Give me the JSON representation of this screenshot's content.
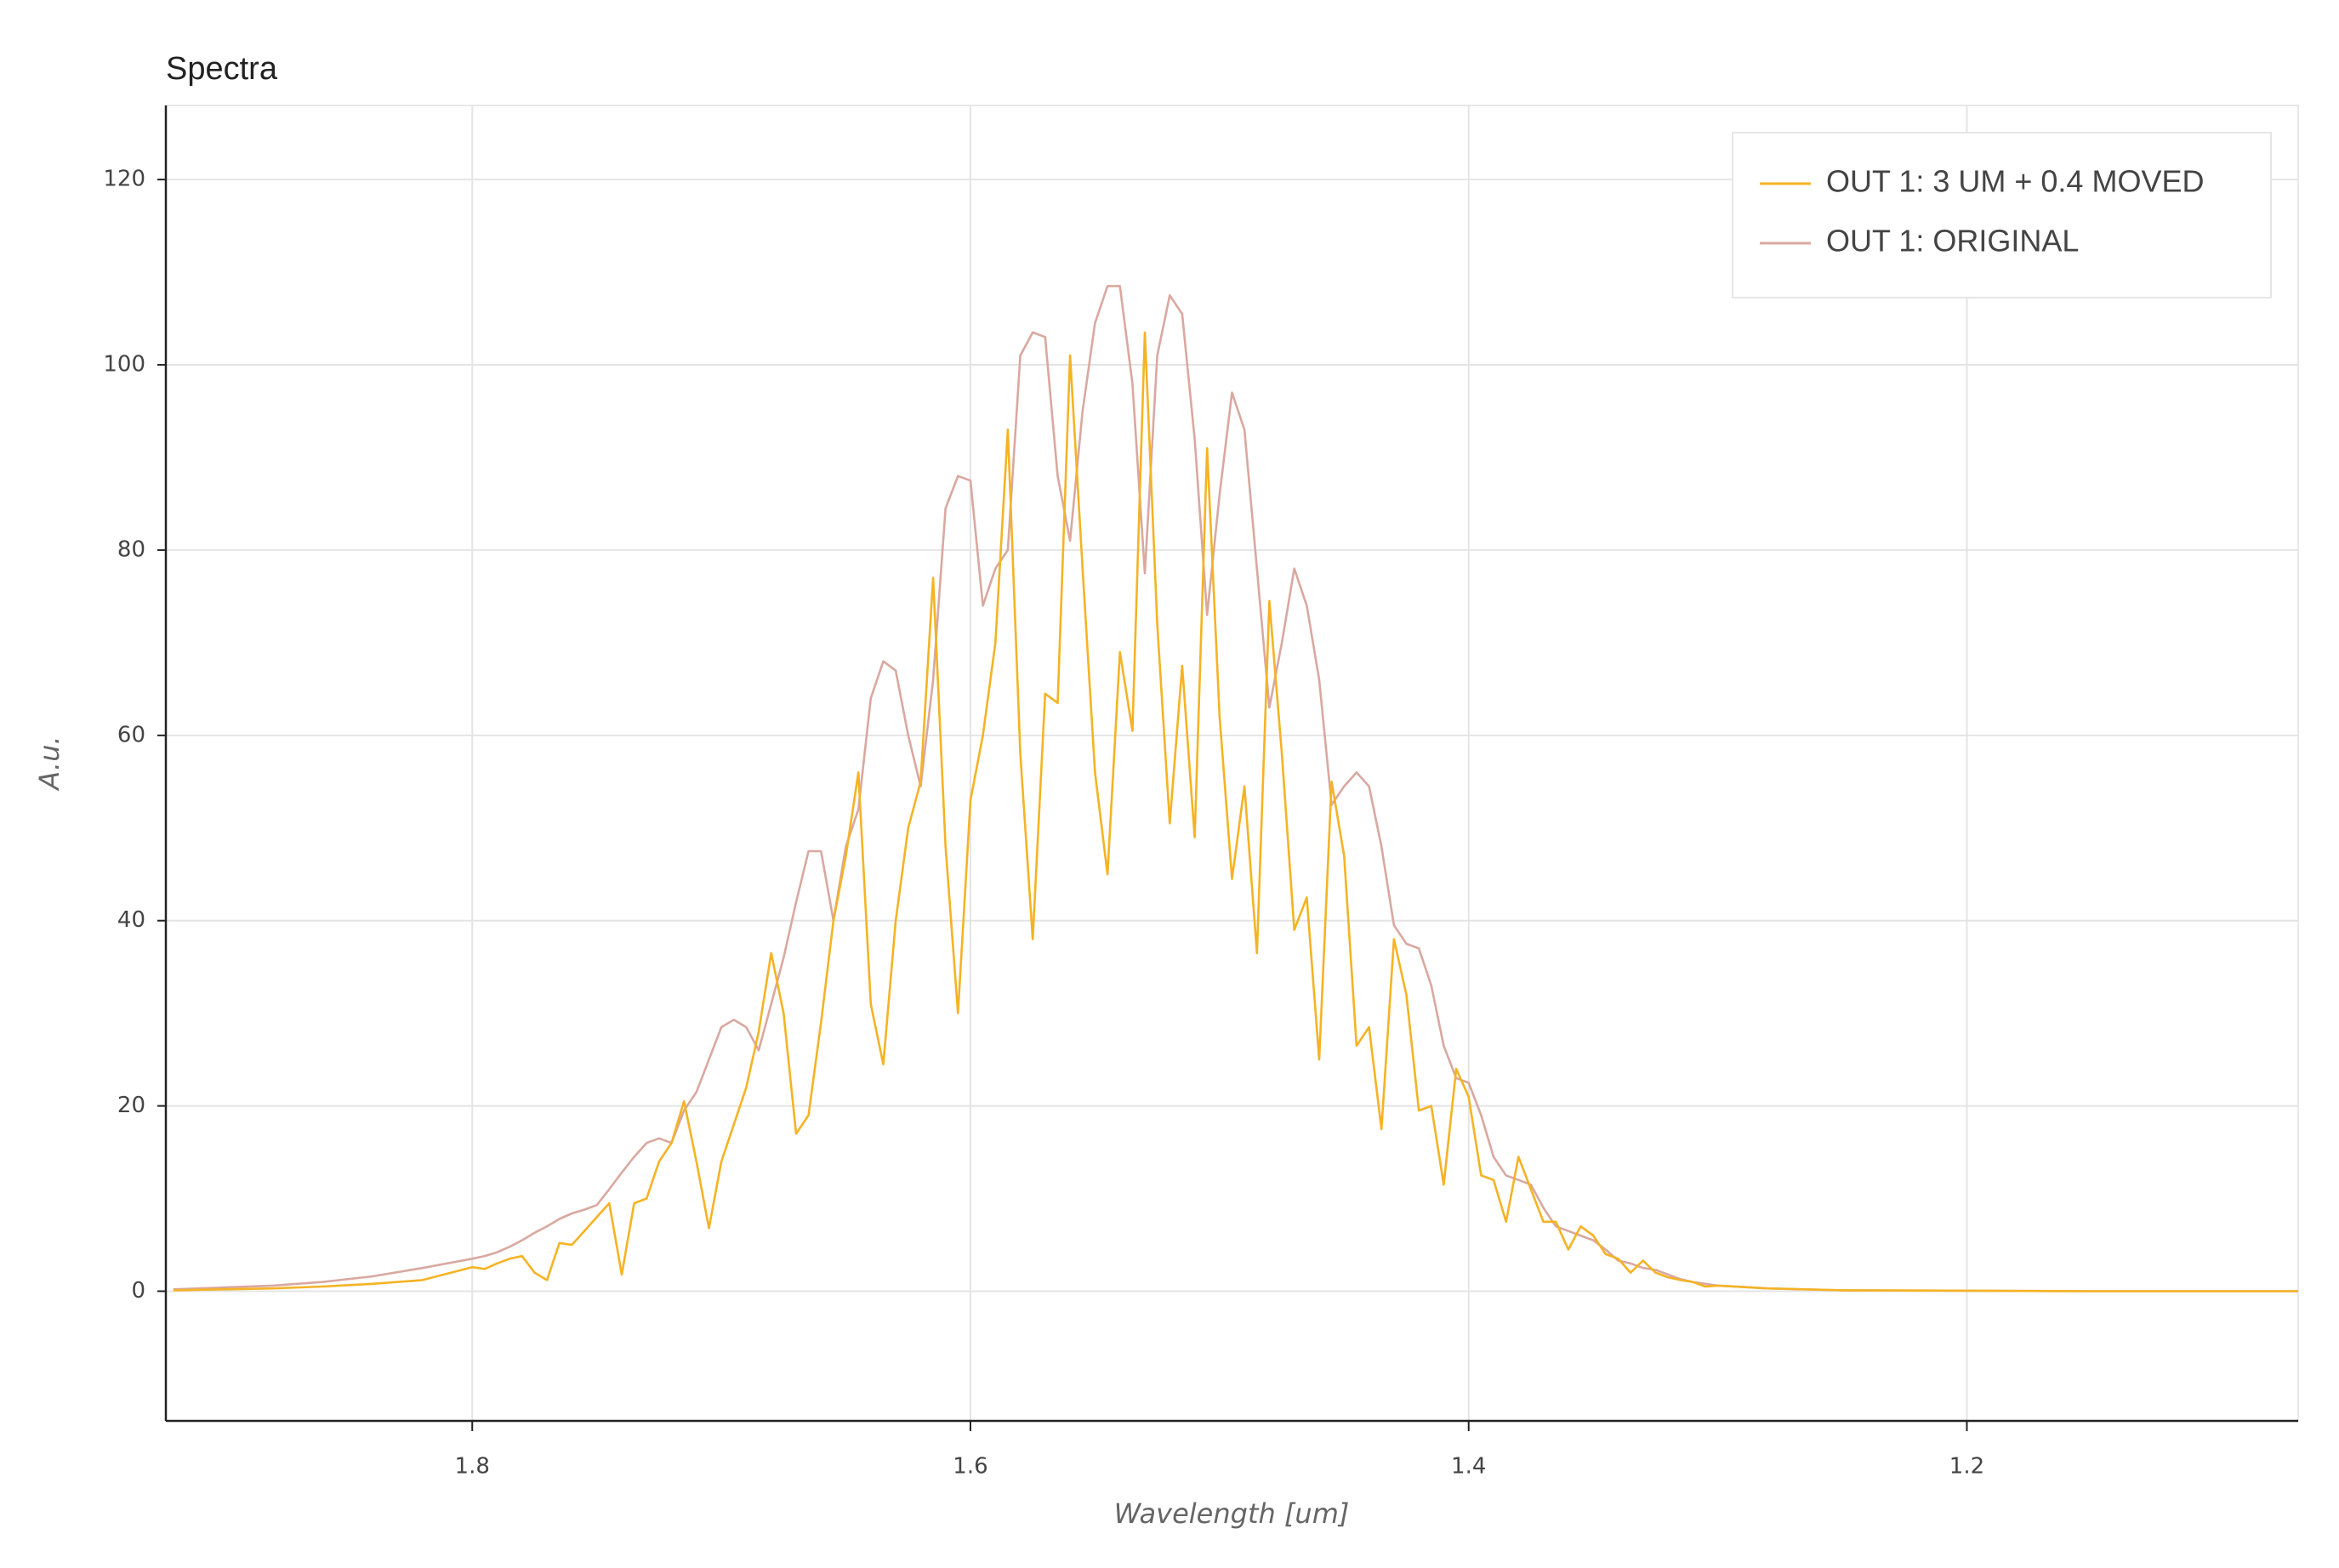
{
  "chart_data": {
    "type": "line",
    "title": "Spectra",
    "x_label": "Wavelength [um]",
    "y_label": "A.u.",
    "x": [
      1.92,
      1.9,
      1.88,
      1.86,
      1.84,
      1.82,
      1.8,
      1.795,
      1.79,
      1.785,
      1.78,
      1.775,
      1.77,
      1.765,
      1.76,
      1.755,
      1.75,
      1.745,
      1.74,
      1.735,
      1.73,
      1.725,
      1.72,
      1.715,
      1.71,
      1.705,
      1.7,
      1.695,
      1.69,
      1.685,
      1.68,
      1.675,
      1.67,
      1.665,
      1.66,
      1.655,
      1.65,
      1.645,
      1.64,
      1.635,
      1.63,
      1.625,
      1.62,
      1.615,
      1.61,
      1.605,
      1.6,
      1.595,
      1.59,
      1.585,
      1.58,
      1.575,
      1.57,
      1.565,
      1.56,
      1.555,
      1.55,
      1.545,
      1.54,
      1.535,
      1.53,
      1.525,
      1.52,
      1.515,
      1.51,
      1.505,
      1.5,
      1.495,
      1.49,
      1.485,
      1.48,
      1.475,
      1.47,
      1.465,
      1.46,
      1.455,
      1.45,
      1.445,
      1.44,
      1.435,
      1.43,
      1.425,
      1.42,
      1.415,
      1.41,
      1.405,
      1.4,
      1.395,
      1.39,
      1.385,
      1.38,
      1.375,
      1.37,
      1.365,
      1.36,
      1.355,
      1.35,
      1.345,
      1.34,
      1.335,
      1.33,
      1.325,
      1.32,
      1.315,
      1.31,
      1.305,
      1.3,
      1.28,
      1.25,
      1.2,
      1.15,
      1.1,
      1.067
    ],
    "series": [
      {
        "name": "OUT 1: 3 UM + 0.4 MOVED",
        "color": "#f5b324",
        "values": [
          0.1,
          0.2,
          0.3,
          0.5,
          0.8,
          1.2,
          2.6,
          2.4,
          3,
          3.5,
          3.8,
          2,
          1.2,
          5.2,
          5,
          6.5,
          8,
          9.5,
          1.8,
          9.5,
          10,
          14,
          16,
          20.5,
          14,
          6.8,
          14,
          18,
          22,
          28,
          36.5,
          30,
          17,
          19,
          29,
          40,
          47,
          56,
          31,
          24.5,
          40,
          50,
          55,
          77,
          48,
          30,
          53,
          60,
          70,
          93,
          58,
          38,
          64.5,
          63.5,
          101,
          78,
          56,
          45,
          69,
          60.5,
          103.5,
          72,
          50.5,
          67.5,
          49,
          91,
          62,
          44.5,
          54.5,
          36.5,
          74.5,
          58,
          39,
          42.5,
          25,
          55,
          47,
          26.5,
          28.5,
          17.5,
          38,
          32,
          19.5,
          20,
          11.5,
          24,
          21,
          12.5,
          12,
          7.5,
          14.5,
          11,
          7.5,
          7.5,
          4.5,
          7,
          6,
          4,
          3.5,
          2,
          3.3,
          2,
          1.5,
          1.2,
          1,
          0.5,
          0.6,
          0.3,
          0.1,
          0.05,
          0,
          0,
          0
        ]
      },
      {
        "name": "OUT 1: ORIGINAL",
        "color": "#d9a8a0",
        "values": [
          0.2,
          0.4,
          0.6,
          1.0,
          1.6,
          2.5,
          3.5,
          3.8,
          4.2,
          4.8,
          5.5,
          6.3,
          7,
          7.8,
          8.4,
          8.8,
          9.3,
          11,
          12.8,
          14.5,
          16,
          16.5,
          16,
          19.5,
          21.5,
          25,
          28.5,
          29.3,
          28.5,
          26,
          31,
          36,
          42,
          47.5,
          47.5,
          40,
          48,
          52,
          64,
          68,
          67,
          60,
          54.5,
          66,
          84.5,
          88,
          87.5,
          74,
          78,
          80,
          101,
          103.5,
          103,
          88,
          81,
          95,
          104.5,
          108.5,
          108.5,
          98,
          77.5,
          101,
          107.5,
          105.5,
          92,
          73,
          86,
          97,
          93,
          78,
          63,
          70,
          78,
          74,
          66,
          52.5,
          54.5,
          56,
          54.5,
          48,
          39.5,
          37.5,
          37,
          33,
          26.5,
          23,
          22.5,
          19,
          14.5,
          12.5,
          12,
          11.5,
          9,
          7,
          6.5,
          6,
          5.5,
          4.5,
          3.3,
          3,
          2.5,
          2.3,
          1.8,
          1.3,
          1,
          0.8,
          0.6,
          0.3,
          0.1,
          0.05,
          0,
          0,
          0
        ]
      }
    ],
    "xlim": [
      1.923,
      1.067
    ],
    "ylim": [
      -14,
      128
    ],
    "xticks": [
      1.8,
      1.6,
      1.4,
      1.2
    ],
    "yticks": [
      0,
      20,
      40,
      60,
      80,
      100,
      120
    ],
    "grid": true,
    "legend": "top_right"
  }
}
